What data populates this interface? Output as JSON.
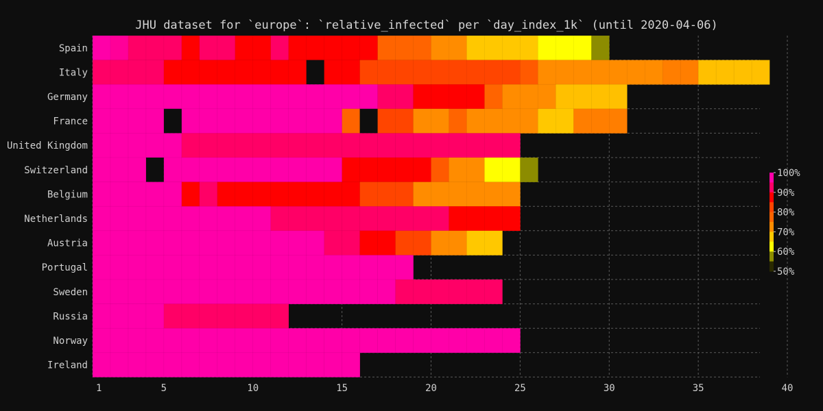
{
  "chart_data": {
    "type": "heatmap",
    "title": "JHU dataset for `europe`: `relative_infected` per `day_index_1k` (until 2020-04-06)",
    "xlabel": "",
    "ylabel": "",
    "x_ticks": [
      1,
      5,
      10,
      15,
      20,
      25,
      30,
      35,
      40
    ],
    "xlim": [
      1,
      40
    ],
    "grid": true,
    "colorbar": {
      "position": "right",
      "range": [
        50,
        100
      ],
      "tick_labels": [
        "100%",
        "90%",
        "80%",
        "70%",
        "60%",
        "50%"
      ],
      "tick_values": [
        100,
        90,
        80,
        70,
        60,
        50
      ]
    },
    "rows": [
      {
        "label": "Spain",
        "values": [
          100,
          98,
          96,
          96,
          96,
          92,
          96,
          96,
          93,
          93,
          96,
          93,
          93,
          93,
          93,
          93,
          82,
          82,
          82,
          78,
          78,
          68,
          68,
          68,
          68,
          63,
          63,
          63,
          55
        ]
      },
      {
        "label": "Italy",
        "values": [
          96,
          96,
          96,
          96,
          93,
          93,
          93,
          93,
          93,
          93,
          93,
          93,
          null,
          93,
          93,
          86,
          86,
          86,
          86,
          86,
          86,
          86,
          86,
          86,
          84,
          78,
          78,
          78,
          78,
          78,
          78,
          78,
          76,
          76,
          70,
          70,
          70,
          70
        ]
      },
      {
        "label": "Germany",
        "values": [
          100,
          100,
          100,
          100,
          100,
          100,
          100,
          100,
          100,
          100,
          100,
          100,
          100,
          100,
          100,
          100,
          96,
          96,
          93,
          93,
          93,
          93,
          82,
          78,
          78,
          78,
          70,
          70,
          70,
          70
        ]
      },
      {
        "label": "France",
        "values": [
          100,
          100,
          100,
          100,
          null,
          100,
          100,
          100,
          100,
          100,
          100,
          100,
          100,
          100,
          82,
          null,
          86,
          86,
          78,
          78,
          82,
          78,
          78,
          78,
          78,
          68,
          68,
          76,
          76,
          76
        ]
      },
      {
        "label": "United Kingdom",
        "values": [
          100,
          100,
          100,
          100,
          100,
          96,
          96,
          96,
          96,
          96,
          96,
          96,
          96,
          96,
          96,
          96,
          96,
          96,
          96,
          96,
          96,
          96,
          96,
          96
        ]
      },
      {
        "label": "Switzerland",
        "values": [
          100,
          100,
          100,
          null,
          100,
          100,
          100,
          100,
          100,
          100,
          100,
          100,
          100,
          100,
          93,
          93,
          93,
          93,
          93,
          84,
          78,
          78,
          63,
          63,
          55
        ]
      },
      {
        "label": "Belgium",
        "values": [
          100,
          100,
          100,
          100,
          100,
          93,
          96,
          93,
          93,
          93,
          93,
          93,
          93,
          93,
          93,
          86,
          86,
          86,
          78,
          78,
          78,
          78,
          78,
          78
        ]
      },
      {
        "label": "Netherlands",
        "values": [
          100,
          100,
          100,
          100,
          100,
          100,
          100,
          100,
          100,
          100,
          96,
          96,
          96,
          96,
          96,
          96,
          96,
          96,
          96,
          96,
          93,
          93,
          93,
          93
        ]
      },
      {
        "label": "Austria",
        "values": [
          100,
          100,
          100,
          100,
          100,
          100,
          100,
          100,
          100,
          100,
          100,
          100,
          100,
          96,
          96,
          93,
          93,
          86,
          86,
          78,
          78,
          68,
          68
        ]
      },
      {
        "label": "Portugal",
        "values": [
          100,
          100,
          100,
          100,
          100,
          100,
          100,
          100,
          100,
          100,
          100,
          100,
          100,
          100,
          100,
          100,
          100,
          100
        ]
      },
      {
        "label": "Sweden",
        "values": [
          100,
          100,
          100,
          100,
          100,
          100,
          100,
          100,
          100,
          100,
          100,
          100,
          100,
          100,
          100,
          100,
          100,
          96,
          96,
          96,
          96,
          96,
          96
        ]
      },
      {
        "label": "Russia",
        "values": [
          100,
          100,
          100,
          100,
          96,
          96,
          96,
          96,
          96,
          96,
          96
        ]
      },
      {
        "label": "Norway",
        "values": [
          100,
          100,
          100,
          100,
          100,
          100,
          100,
          100,
          100,
          100,
          100,
          100,
          100,
          100,
          100,
          100,
          100,
          100,
          100,
          100,
          100,
          100,
          100,
          100
        ]
      },
      {
        "label": "Ireland",
        "values": [
          100,
          100,
          100,
          100,
          100,
          100,
          100,
          100,
          100,
          100,
          100,
          100,
          100,
          100,
          100
        ]
      }
    ]
  },
  "colors": {
    "background": "#0e0e0e",
    "grid": "#5a5a5a",
    "palette": {
      "100": "#ff00a8",
      "98": "#ff0098",
      "96": "#ff0066",
      "93": "#ff0000",
      "86": "#ff4500",
      "84": "#ff5a00",
      "82": "#ff6400",
      "78": "#ff8c00",
      "76": "#ff7e00",
      "70": "#ffc000",
      "68": "#ffc800",
      "63": "#ffff00",
      "55": "#8c8c00"
    }
  }
}
